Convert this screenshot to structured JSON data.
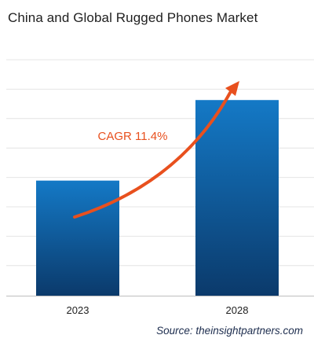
{
  "chart_data": {
    "type": "bar",
    "title": "China and Global Rugged Phones Market",
    "categories": [
      "2023",
      "2028"
    ],
    "values": [
      1.0,
      1.7
    ],
    "xlabel": "",
    "ylabel": "",
    "ylim": [
      0,
      2.05
    ],
    "grid": true,
    "annotation": "CAGR 11.4%",
    "source_label": "Source: ",
    "source_site": "theinsightpartners.com",
    "bar_color_top": "#1479c6",
    "bar_color_bottom": "#0b3a6b",
    "arrow_color": "#e8501e"
  }
}
